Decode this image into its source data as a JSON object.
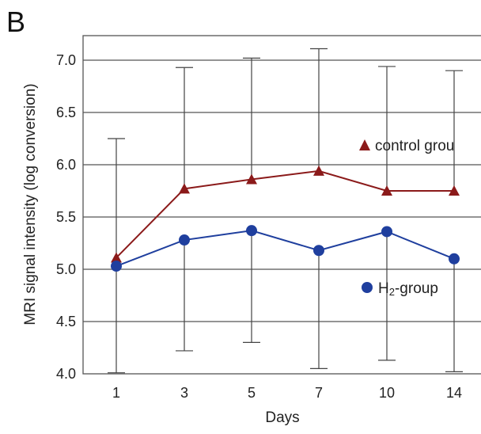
{
  "chart_data": {
    "type": "line",
    "panel_label": "B",
    "title": "",
    "xlabel": "Days",
    "ylabel": "MRI signal intensity (log conversion)",
    "categories": [
      "1",
      "3",
      "5",
      "7",
      "10",
      "14"
    ],
    "ylim": [
      4.0,
      7.0
    ],
    "yticks": [
      "4.0",
      "4.5",
      "5.0",
      "5.5",
      "6.0",
      "6.5",
      "7.0"
    ],
    "grid": "horizontal",
    "series": [
      {
        "name": "control group",
        "legend_label": "control grou",
        "marker": "triangle",
        "color": "#8b1a1a",
        "values": [
          5.11,
          5.77,
          5.86,
          5.94,
          5.75,
          5.75
        ],
        "error_upper": [
          6.25,
          6.93,
          7.02,
          7.11,
          6.94,
          6.9
        ]
      },
      {
        "name": "H2-group",
        "legend_label_main": "H",
        "legend_label_sub": "2",
        "legend_label_rest": "-group",
        "marker": "circle",
        "color": "#1f3f9e",
        "values": [
          5.03,
          5.28,
          5.37,
          5.18,
          5.36,
          5.1
        ],
        "error_lower": [
          4.01,
          4.22,
          4.3,
          4.05,
          4.13,
          4.02
        ]
      }
    ]
  }
}
